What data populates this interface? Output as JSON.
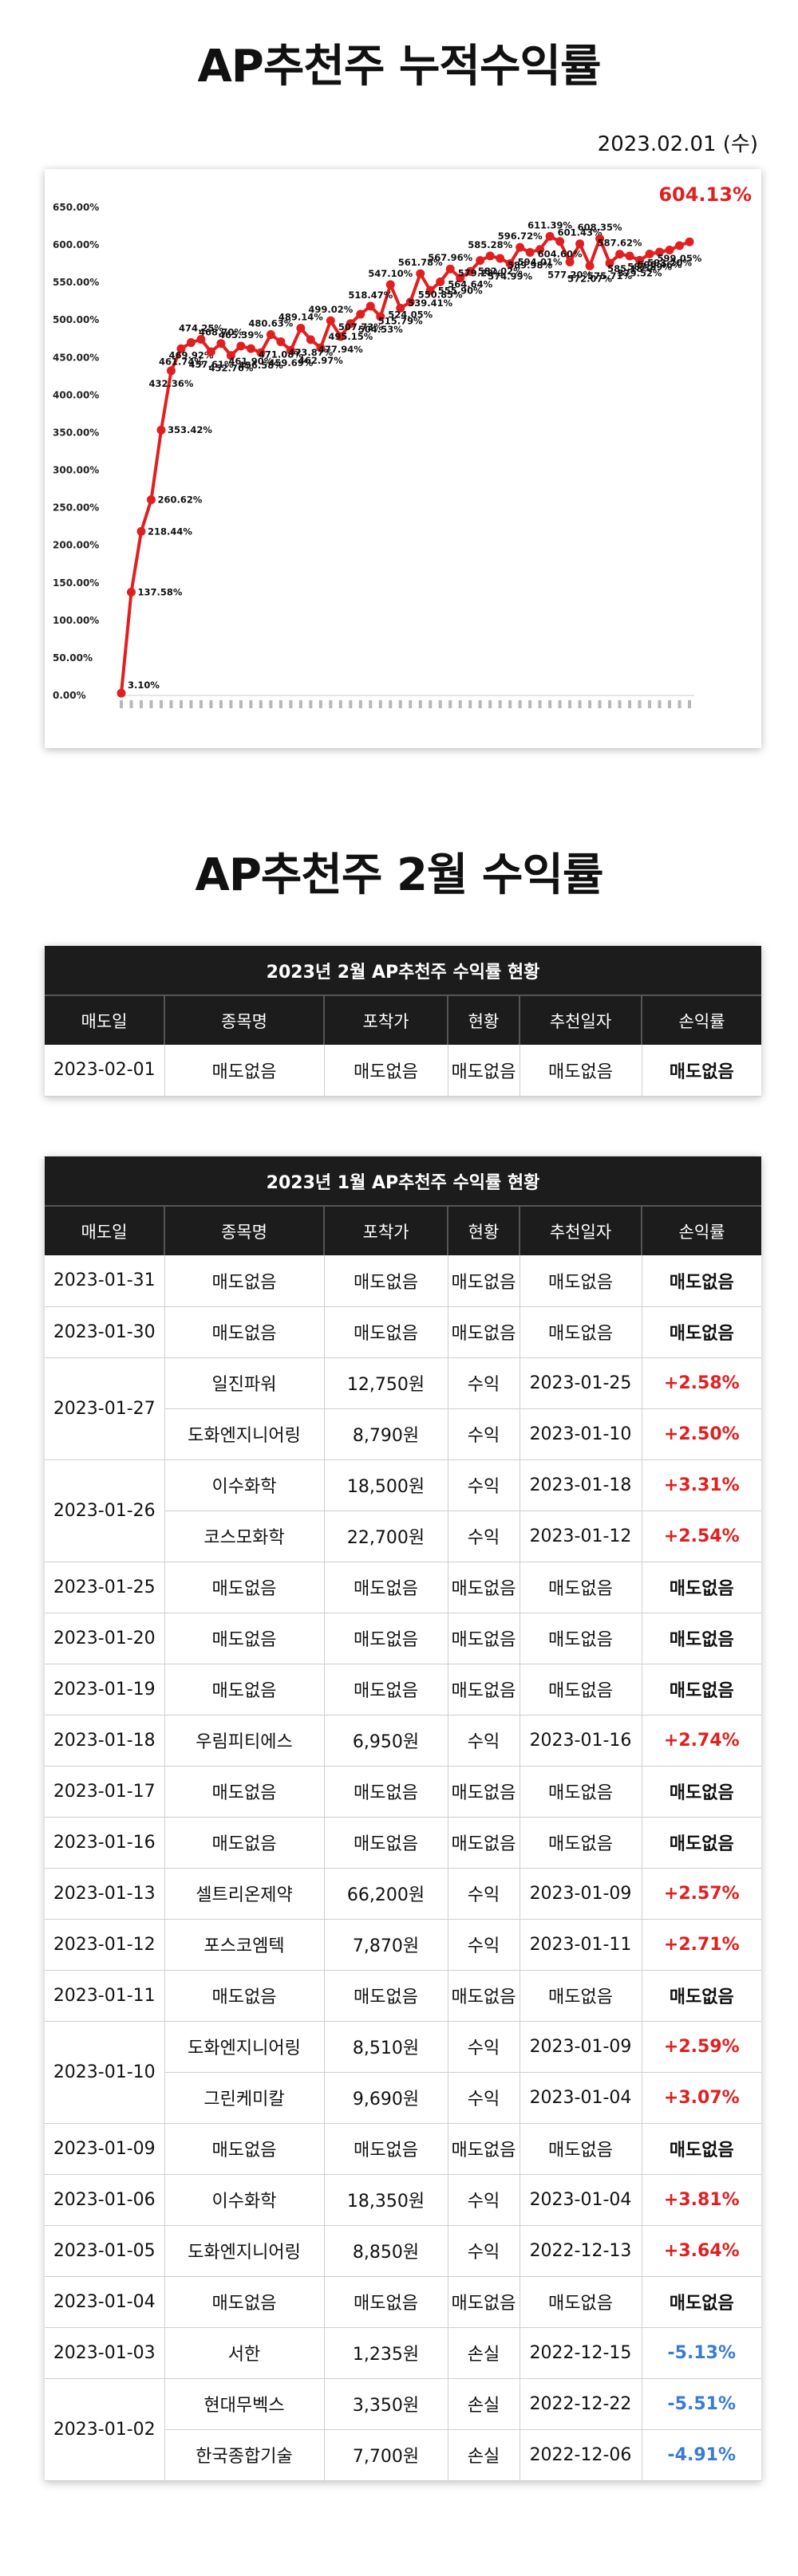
{
  "title1": "AP추천주 누적수익률",
  "date": "2023.02.01 (수)",
  "chart_data": {
    "type": "line",
    "title": "",
    "xlabel": "",
    "ylabel": "",
    "ylim": [
      0,
      650
    ],
    "ytick_labels": [
      "0.00%",
      "50.00%",
      "100.00%",
      "150.00%",
      "200.00%",
      "250.00%",
      "300.00%",
      "350.00%",
      "400.00%",
      "450.00%",
      "500.00%",
      "550.00%",
      "600.00%",
      "650.00%"
    ],
    "grid": false,
    "color": "#e02020",
    "latest_label": "604.13%",
    "values": [
      3.1,
      137.58,
      218.44,
      260.62,
      353.42,
      432.36,
      461.74,
      469.92,
      474.25,
      457.61,
      468.7,
      452.76,
      465.39,
      461.9,
      456.58,
      480.63,
      471.08,
      459.69,
      489.14,
      473.87,
      462.97,
      499.02,
      477.94,
      495.15,
      507.73,
      518.47,
      504.53,
      547.1,
      515.79,
      524.05,
      561.78,
      539.41,
      550.85,
      567.96,
      555.9,
      564.64,
      579.28,
      585.28,
      582.02,
      574.99,
      596.72,
      589.98,
      594.01,
      611.39,
      604.6,
      577.2,
      601.43,
      572.07,
      608.35,
      575.71,
      587.62,
      585.18,
      579.52,
      587.89,
      590.46,
      593.2,
      599.05,
      604.13
    ],
    "point_labels": [
      "3.10%",
      "137.58%",
      "218.44%",
      "260.62%",
      "353.42%",
      "432.36%",
      "461.74%",
      "469.92%",
      "474.25%",
      "457.61%",
      "468.70%",
      "452.76%",
      "465.39%",
      "461.90%",
      "456.58%",
      "480.63%",
      "471.08%",
      "459.69%",
      "489.14%",
      "473.87%",
      "462.97%",
      "499.02%",
      "477.94%",
      "495.15%",
      "507.73%",
      "518.47%",
      "504.53%",
      "547.10%",
      "515.79%",
      "524.05%",
      "561.78%",
      "539.41%",
      "550.85%",
      "567.96%",
      "555.90%",
      "564.64%",
      "579.28%",
      "585.28%",
      "582.02%",
      "574.99%",
      "596.72%",
      "589.98%",
      "594.01%",
      "611.39%",
      "604.60%",
      "577.20%",
      "601.43%",
      "572.07%",
      "608.35%",
      "575.71%",
      "587.62%",
      "585.18%",
      "579.52%",
      "587.89%",
      "590.46%",
      "593.20%",
      "599.05%",
      ""
    ]
  },
  "title2": "AP추천주 2월 수익률",
  "columns": [
    "매도일",
    "종목명",
    "포착가",
    "현황",
    "추천일자",
    "손익률"
  ],
  "feb": {
    "caption": "2023년 2월 AP추천주 수익률 현황",
    "rows": [
      {
        "date": "2023-02-01",
        "span": 1,
        "name": "매도없음",
        "price": "매도없음",
        "status": "매도없음",
        "rec": "매도없음",
        "pl": "매도없음",
        "type": "none"
      }
    ]
  },
  "jan": {
    "caption": "2023년 1월 AP추천주 수익률 현황",
    "rows": [
      {
        "date": "2023-01-31",
        "span": 1,
        "name": "매도없음",
        "price": "매도없음",
        "status": "매도없음",
        "rec": "매도없음",
        "pl": "매도없음",
        "type": "none"
      },
      {
        "date": "2023-01-30",
        "span": 1,
        "name": "매도없음",
        "price": "매도없음",
        "status": "매도없음",
        "rec": "매도없음",
        "pl": "매도없음",
        "type": "none"
      },
      {
        "date": "2023-01-27",
        "span": 2,
        "name": "일진파워",
        "price": "12,750원",
        "status": "수익",
        "rec": "2023-01-25",
        "pl": "+2.58%",
        "type": "pos"
      },
      {
        "date": "",
        "span": 0,
        "name": "도화엔지니어링",
        "price": "8,790원",
        "status": "수익",
        "rec": "2023-01-10",
        "pl": "+2.50%",
        "type": "pos"
      },
      {
        "date": "2023-01-26",
        "span": 2,
        "name": "이수화학",
        "price": "18,500원",
        "status": "수익",
        "rec": "2023-01-18",
        "pl": "+3.31%",
        "type": "pos"
      },
      {
        "date": "",
        "span": 0,
        "name": "코스모화학",
        "price": "22,700원",
        "status": "수익",
        "rec": "2023-01-12",
        "pl": "+2.54%",
        "type": "pos"
      },
      {
        "date": "2023-01-25",
        "span": 1,
        "name": "매도없음",
        "price": "매도없음",
        "status": "매도없음",
        "rec": "매도없음",
        "pl": "매도없음",
        "type": "none"
      },
      {
        "date": "2023-01-20",
        "span": 1,
        "name": "매도없음",
        "price": "매도없음",
        "status": "매도없음",
        "rec": "매도없음",
        "pl": "매도없음",
        "type": "none"
      },
      {
        "date": "2023-01-19",
        "span": 1,
        "name": "매도없음",
        "price": "매도없음",
        "status": "매도없음",
        "rec": "매도없음",
        "pl": "매도없음",
        "type": "none"
      },
      {
        "date": "2023-01-18",
        "span": 1,
        "name": "우림피티에스",
        "price": "6,950원",
        "status": "수익",
        "rec": "2023-01-16",
        "pl": "+2.74%",
        "type": "pos"
      },
      {
        "date": "2023-01-17",
        "span": 1,
        "name": "매도없음",
        "price": "매도없음",
        "status": "매도없음",
        "rec": "매도없음",
        "pl": "매도없음",
        "type": "none"
      },
      {
        "date": "2023-01-16",
        "span": 1,
        "name": "매도없음",
        "price": "매도없음",
        "status": "매도없음",
        "rec": "매도없음",
        "pl": "매도없음",
        "type": "none"
      },
      {
        "date": "2023-01-13",
        "span": 1,
        "name": "셀트리온제약",
        "price": "66,200원",
        "status": "수익",
        "rec": "2023-01-09",
        "pl": "+2.57%",
        "type": "pos"
      },
      {
        "date": "2023-01-12",
        "span": 1,
        "name": "포스코엠텍",
        "price": "7,870원",
        "status": "수익",
        "rec": "2023-01-11",
        "pl": "+2.71%",
        "type": "pos"
      },
      {
        "date": "2023-01-11",
        "span": 1,
        "name": "매도없음",
        "price": "매도없음",
        "status": "매도없음",
        "rec": "매도없음",
        "pl": "매도없음",
        "type": "none"
      },
      {
        "date": "2023-01-10",
        "span": 2,
        "name": "도화엔지니어링",
        "price": "8,510원",
        "status": "수익",
        "rec": "2023-01-09",
        "pl": "+2.59%",
        "type": "pos"
      },
      {
        "date": "",
        "span": 0,
        "name": "그린케미칼",
        "price": "9,690원",
        "status": "수익",
        "rec": "2023-01-04",
        "pl": "+3.07%",
        "type": "pos"
      },
      {
        "date": "2023-01-09",
        "span": 1,
        "name": "매도없음",
        "price": "매도없음",
        "status": "매도없음",
        "rec": "매도없음",
        "pl": "매도없음",
        "type": "none"
      },
      {
        "date": "2023-01-06",
        "span": 1,
        "name": "이수화학",
        "price": "18,350원",
        "status": "수익",
        "rec": "2023-01-04",
        "pl": "+3.81%",
        "type": "pos"
      },
      {
        "date": "2023-01-05",
        "span": 1,
        "name": "도화엔지니어링",
        "price": "8,850원",
        "status": "수익",
        "rec": "2022-12-13",
        "pl": "+3.64%",
        "type": "pos"
      },
      {
        "date": "2023-01-04",
        "span": 1,
        "name": "매도없음",
        "price": "매도없음",
        "status": "매도없음",
        "rec": "매도없음",
        "pl": "매도없음",
        "type": "none"
      },
      {
        "date": "2023-01-03",
        "span": 1,
        "name": "서한",
        "price": "1,235원",
        "status": "손실",
        "rec": "2022-12-15",
        "pl": "-5.13%",
        "type": "neg"
      },
      {
        "date": "2023-01-02",
        "span": 2,
        "name": "현대무벡스",
        "price": "3,350원",
        "status": "손실",
        "rec": "2022-12-22",
        "pl": "-5.51%",
        "type": "neg"
      },
      {
        "date": "",
        "span": 0,
        "name": "한국종합기술",
        "price": "7,700원",
        "status": "손실",
        "rec": "2022-12-06",
        "pl": "-4.91%",
        "type": "neg"
      }
    ]
  }
}
